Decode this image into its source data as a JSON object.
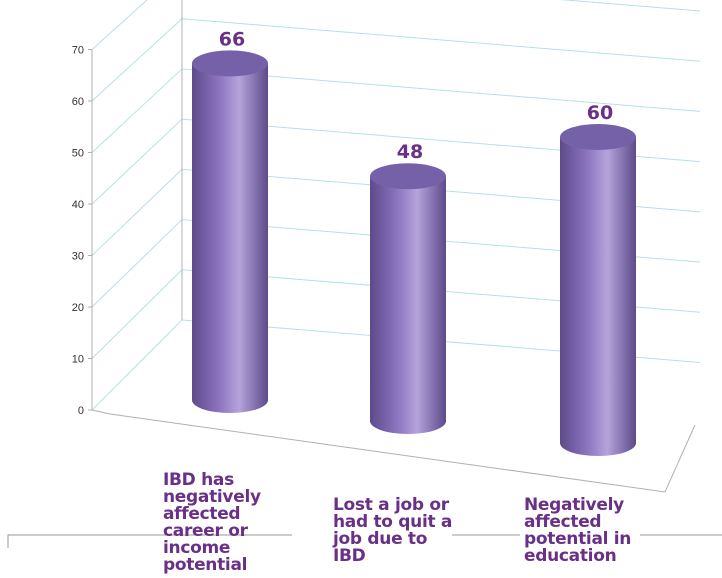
{
  "chart_data": {
    "type": "bar",
    "style": "3d-cylinder",
    "categories": [
      "IBD has negatively affected career or income potential",
      "Lost a job or had to quit a job due to IBD",
      "Negatively affected potential in education"
    ],
    "values": [
      66,
      48,
      60
    ],
    "ylim": [
      0,
      70
    ],
    "yticks": [
      "0",
      "10",
      "20",
      "30",
      "40",
      "50",
      "60",
      "70"
    ],
    "title": "",
    "xlabel": "",
    "ylabel": "",
    "grid": true,
    "colors": {
      "bar": "#8b73bf",
      "bar_dark": "#5d4a8a",
      "bar_light": "#b5a3dc",
      "top": "#7561a8",
      "label": "#6a2f86",
      "grid": "#b7dfe8",
      "axis_frame": "#b0b0b0"
    }
  }
}
